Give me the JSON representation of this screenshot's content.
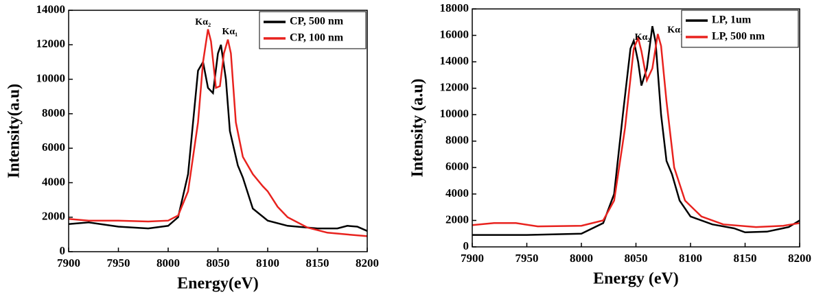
{
  "chart_data": [
    {
      "type": "line",
      "xlabel": "Energy(eV)",
      "ylabel": "Intensity(a.u)",
      "xlim": [
        7900,
        8200
      ],
      "xticks": [
        7900,
        7950,
        8000,
        8050,
        8100,
        8150,
        8200
      ],
      "ylim": [
        0,
        14000
      ],
      "yticks": [
        0,
        2000,
        4000,
        6000,
        8000,
        10000,
        12000,
        14000
      ],
      "legend": "upper right",
      "annotations": [
        "Kα₂",
        "Kα₁"
      ],
      "series": [
        {
          "name": "CP, 500 nm",
          "color": "#000000",
          "x": [
            7900,
            7920,
            7950,
            7980,
            8000,
            8010,
            8020,
            8030,
            8035,
            8040,
            8045,
            8050,
            8053,
            8058,
            8062,
            8070,
            8075,
            8085,
            8100,
            8120,
            8150,
            8170,
            8180,
            8190,
            8200
          ],
          "values": [
            1600,
            1700,
            1450,
            1350,
            1500,
            2000,
            4500,
            10500,
            11000,
            9500,
            9200,
            11500,
            12000,
            10000,
            7000,
            5000,
            4300,
            2500,
            1800,
            1500,
            1350,
            1350,
            1500,
            1450,
            1200
          ]
        },
        {
          "name": "CP, 100 nm",
          "color": "#e8221e",
          "x": [
            7900,
            7920,
            7950,
            7980,
            8000,
            8010,
            8020,
            8030,
            8035,
            8040,
            8043,
            8048,
            8052,
            8056,
            8060,
            8063,
            8068,
            8075,
            8085,
            8095,
            8100,
            8110,
            8120,
            8140,
            8160,
            8180,
            8200
          ],
          "values": [
            1900,
            1800,
            1800,
            1750,
            1800,
            2100,
            3500,
            7500,
            11000,
            12900,
            12200,
            9500,
            9600,
            11500,
            12300,
            11500,
            7500,
            5500,
            4500,
            3800,
            3500,
            2600,
            2000,
            1400,
            1100,
            1000,
            900
          ]
        }
      ]
    },
    {
      "type": "line",
      "xlabel": "Energy (eV)",
      "ylabel": "Intensity (a.u)",
      "xlim": [
        7900,
        8200
      ],
      "xticks": [
        7900,
        7950,
        8000,
        8050,
        8100,
        8150,
        8200
      ],
      "ylim": [
        0,
        18000
      ],
      "yticks": [
        0,
        2000,
        4000,
        6000,
        8000,
        10000,
        12000,
        14000,
        16000,
        18000
      ],
      "legend": "upper right",
      "annotations": [
        "Kα₂",
        "Kα₁"
      ],
      "series": [
        {
          "name": "LP, 1um",
          "color": "#000000",
          "x": [
            7900,
            7950,
            8000,
            8020,
            8030,
            8038,
            8045,
            8048,
            8052,
            8055,
            8060,
            8065,
            8068,
            8073,
            8078,
            8083,
            8090,
            8100,
            8120,
            8140,
            8150,
            8170,
            8190,
            8200
          ],
          "values": [
            900,
            900,
            1000,
            1800,
            4000,
            10000,
            15000,
            15600,
            14000,
            12200,
            13500,
            16700,
            15500,
            10000,
            6500,
            5500,
            3500,
            2300,
            1700,
            1400,
            1100,
            1150,
            1500,
            2000
          ]
        },
        {
          "name": "LP, 500 nm",
          "color": "#e8221e",
          "x": [
            7900,
            7920,
            7940,
            7960,
            8000,
            8020,
            8030,
            8040,
            8048,
            8052,
            8055,
            8060,
            8065,
            8070,
            8073,
            8078,
            8085,
            8095,
            8110,
            8130,
            8160,
            8185,
            8200
          ],
          "values": [
            1650,
            1800,
            1800,
            1550,
            1600,
            2000,
            3500,
            9000,
            15000,
            15800,
            14800,
            12600,
            13500,
            16100,
            15200,
            11000,
            6000,
            3500,
            2300,
            1700,
            1500,
            1600,
            1800
          ]
        }
      ]
    }
  ]
}
